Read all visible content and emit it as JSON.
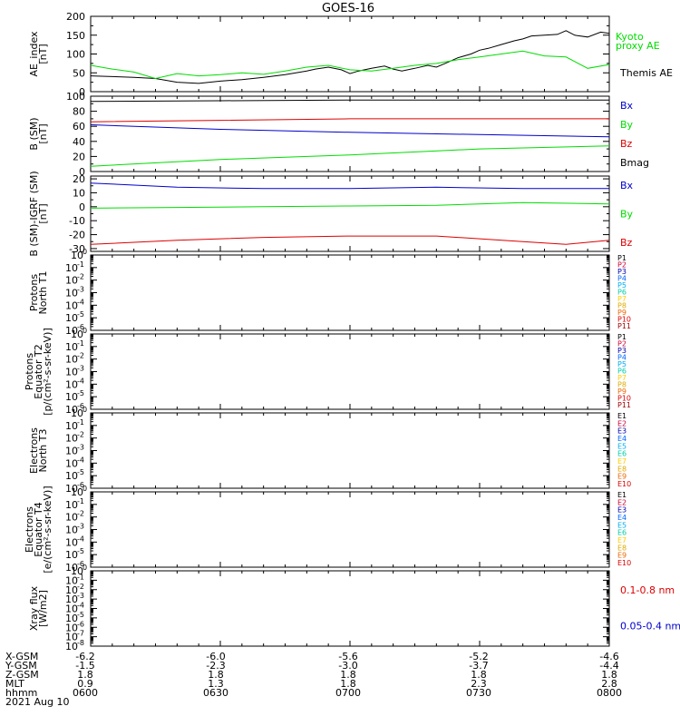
{
  "title": "GOES-16",
  "colors": {
    "black": "#000000",
    "red": "#dd0000",
    "green": "#00dd00",
    "blue": "#0000cc",
    "ch": [
      "#000000",
      "#cc0033",
      "#0000aa",
      "#0066ff",
      "#00aaee",
      "#00ccaa",
      "#ffcc00",
      "#ddaa00",
      "#ee6600",
      "#dd0000",
      "#990000"
    ]
  },
  "time_axis": {
    "rows": [
      {
        "label": "X-GSM",
        "values": [
          "-6.2",
          "-6.0",
          "-5.6",
          "-5.2",
          "-4.6"
        ]
      },
      {
        "label": "Y-GSM",
        "values": [
          "-1.5",
          "-2.3",
          "-3.0",
          "-3.7",
          "-4.4"
        ]
      },
      {
        "label": "Z-GSM",
        "values": [
          "1.8",
          "1.8",
          "1.8",
          "1.8",
          "1.8"
        ]
      },
      {
        "label": "MLT",
        "values": [
          "0.9",
          "1.3",
          "1.8",
          "2.3",
          "2.8"
        ]
      },
      {
        "label": "hhmm",
        "values": [
          "0600",
          "0630",
          "0700",
          "0730",
          "0800"
        ]
      }
    ],
    "date": "2021 Aug 10"
  },
  "chart_data": [
    {
      "type": "line",
      "ylabel": [
        "AE_index",
        "[nT]"
      ],
      "ylim": [
        0,
        200
      ],
      "yticks": [
        0,
        50,
        100,
        150,
        200
      ],
      "xlim": [
        0,
        120
      ],
      "legend": [
        {
          "text": "Kyoto",
          "color": "#00dd00"
        },
        {
          "text": "proxy AE",
          "color": "#00dd00"
        },
        {
          "text": "Themis AE",
          "color": "#000000"
        }
      ],
      "series": [
        {
          "name": "Themis AE",
          "color": "#000000",
          "x": [
            0,
            5,
            10,
            15,
            20,
            25,
            30,
            35,
            40,
            45,
            50,
            52,
            55,
            58,
            60,
            62,
            65,
            68,
            70,
            72,
            75,
            78,
            80,
            82,
            85,
            88,
            90,
            92,
            95,
            98,
            100,
            102,
            105,
            108,
            110,
            112,
            115,
            118,
            120
          ],
          "y": [
            42,
            40,
            38,
            35,
            25,
            22,
            28,
            32,
            38,
            45,
            55,
            60,
            65,
            58,
            48,
            55,
            62,
            68,
            60,
            55,
            62,
            70,
            65,
            75,
            90,
            100,
            110,
            115,
            125,
            135,
            140,
            148,
            150,
            152,
            162,
            150,
            145,
            158,
            155
          ]
        },
        {
          "name": "Kyoto proxy AE",
          "color": "#00dd00",
          "x": [
            0,
            5,
            10,
            15,
            20,
            25,
            30,
            35,
            40,
            45,
            50,
            55,
            60,
            65,
            70,
            75,
            80,
            85,
            90,
            95,
            100,
            105,
            110,
            115,
            120
          ],
          "y": [
            70,
            60,
            52,
            35,
            48,
            42,
            45,
            50,
            46,
            55,
            65,
            70,
            58,
            55,
            62,
            70,
            75,
            85,
            92,
            100,
            108,
            95,
            92,
            62,
            72
          ]
        }
      ]
    },
    {
      "type": "line",
      "ylabel": [
        "B (SM)",
        "[nT]"
      ],
      "ylim": [
        0,
        100
      ],
      "yticks": [
        0,
        20,
        40,
        60,
        80,
        100
      ],
      "xlim": [
        0,
        120
      ],
      "legend": [
        {
          "text": "Bx",
          "color": "#0000cc"
        },
        {
          "text": "By",
          "color": "#00dd00"
        },
        {
          "text": "Bz",
          "color": "#dd0000"
        },
        {
          "text": "Bmag",
          "color": "#000000"
        }
      ],
      "series": [
        {
          "name": "Bmag",
          "color": "#000000",
          "x": [
            0,
            30,
            60,
            90,
            120
          ],
          "y": [
            93,
            94,
            95,
            95,
            95
          ]
        },
        {
          "name": "Bz",
          "color": "#dd0000",
          "x": [
            0,
            30,
            60,
            90,
            120
          ],
          "y": [
            66,
            68,
            70,
            70,
            70
          ]
        },
        {
          "name": "Bx",
          "color": "#0000cc",
          "x": [
            0,
            30,
            60,
            90,
            120
          ],
          "y": [
            62,
            56,
            52,
            49,
            46
          ]
        },
        {
          "name": "By",
          "color": "#00dd00",
          "x": [
            0,
            30,
            60,
            90,
            120
          ],
          "y": [
            7,
            16,
            22,
            30,
            34
          ]
        }
      ]
    },
    {
      "type": "line",
      "ylabel": [
        "B (SM)-IGRF (SM)",
        "[nT]"
      ],
      "ylim": [
        -32,
        22
      ],
      "yticks": [
        -30,
        -20,
        -10,
        0,
        10,
        20
      ],
      "xlim": [
        0,
        120
      ],
      "legend": [
        {
          "text": "Bx",
          "color": "#0000cc"
        },
        {
          "text": "By",
          "color": "#00dd00"
        },
        {
          "text": "Bz",
          "color": "#dd0000"
        }
      ],
      "series": [
        {
          "name": "Bx",
          "color": "#0000cc",
          "x": [
            0,
            20,
            40,
            60,
            80,
            100,
            120
          ],
          "y": [
            17,
            14,
            13,
            13,
            14,
            13,
            13
          ]
        },
        {
          "name": "By",
          "color": "#00dd00",
          "x": [
            0,
            20,
            40,
            60,
            80,
            100,
            120
          ],
          "y": [
            -1,
            -0.5,
            0,
            0.5,
            1,
            3,
            2
          ]
        },
        {
          "name": "Bz",
          "color": "#dd0000",
          "x": [
            0,
            20,
            40,
            60,
            80,
            100,
            110,
            120
          ],
          "y": [
            -27,
            -24,
            -22,
            -21,
            -21,
            -25,
            -27,
            -24
          ]
        }
      ]
    },
    {
      "type": "line",
      "ylabel": [
        "Protons",
        "North T1"
      ],
      "scale": "log",
      "ylim": [
        1e-06,
        1
      ],
      "tick_labels": [
        "10",
        "10",
        "10",
        "10",
        "10",
        "10",
        "10"
      ],
      "tick_exponents": [
        "0",
        "-1",
        "-2",
        "-3",
        "-4",
        "-5",
        "-6"
      ],
      "legend": [
        "P1",
        "P2",
        "P3",
        "P4",
        "P5",
        "P6",
        "P7",
        "P8",
        "P9",
        "P10",
        "P11"
      ],
      "series": []
    },
    {
      "type": "line",
      "ylabel": [
        "Protons",
        "Equator T2",
        "[p/(cm²-s-sr-keV)]"
      ],
      "scale": "log",
      "ylim": [
        1e-06,
        1
      ],
      "tick_labels": [
        "10",
        "10",
        "10",
        "10",
        "10",
        "10",
        "10"
      ],
      "tick_exponents": [
        "0",
        "-1",
        "-2",
        "-3",
        "-4",
        "-5",
        "-6"
      ],
      "legend": [
        "P1",
        "P2",
        "P3",
        "P4",
        "P5",
        "P6",
        "P7",
        "P8",
        "P9",
        "P10",
        "P11"
      ],
      "series": []
    },
    {
      "type": "line",
      "ylabel": [
        "Electrons",
        "North T3"
      ],
      "scale": "log",
      "ylim": [
        1e-06,
        1
      ],
      "tick_labels": [
        "10",
        "10",
        "10",
        "10",
        "10",
        "10",
        "10"
      ],
      "tick_exponents": [
        "0",
        "-1",
        "-2",
        "-3",
        "-4",
        "-5",
        "-6"
      ],
      "legend": [
        "E1",
        "E2",
        "E3",
        "E4",
        "E5",
        "E6",
        "E7",
        "E8",
        "E9",
        "E10"
      ],
      "series": []
    },
    {
      "type": "line",
      "ylabel": [
        "Electrons",
        "Equator T4",
        "[e/(cm²-s-sr-keV)]"
      ],
      "scale": "log",
      "ylim": [
        1e-06,
        1
      ],
      "tick_labels": [
        "10",
        "10",
        "10",
        "10",
        "10",
        "10",
        "10"
      ],
      "tick_exponents": [
        "0",
        "-1",
        "-2",
        "-3",
        "-4",
        "-5",
        "-6"
      ],
      "legend": [
        "E1",
        "E2",
        "E3",
        "E4",
        "E5",
        "E6",
        "E7",
        "E8",
        "E9",
        "E10"
      ],
      "series": []
    },
    {
      "type": "line",
      "ylabel": [
        "Xray flux",
        "[W/m2]"
      ],
      "scale": "log",
      "ylim": [
        1e-08,
        1
      ],
      "tick_labels": [
        "10",
        "10",
        "10",
        "10",
        "10",
        "10",
        "10",
        "10",
        "10"
      ],
      "tick_exponents": [
        "0",
        "-1",
        "-2",
        "-3",
        "-4",
        "-5",
        "-6",
        "-7",
        "-8"
      ],
      "legend": [
        {
          "text": "0.1-0.8 nm",
          "color": "#dd0000"
        },
        {
          "text": "0.05-0.4 nm",
          "color": "#0000cc"
        }
      ],
      "series": []
    }
  ]
}
